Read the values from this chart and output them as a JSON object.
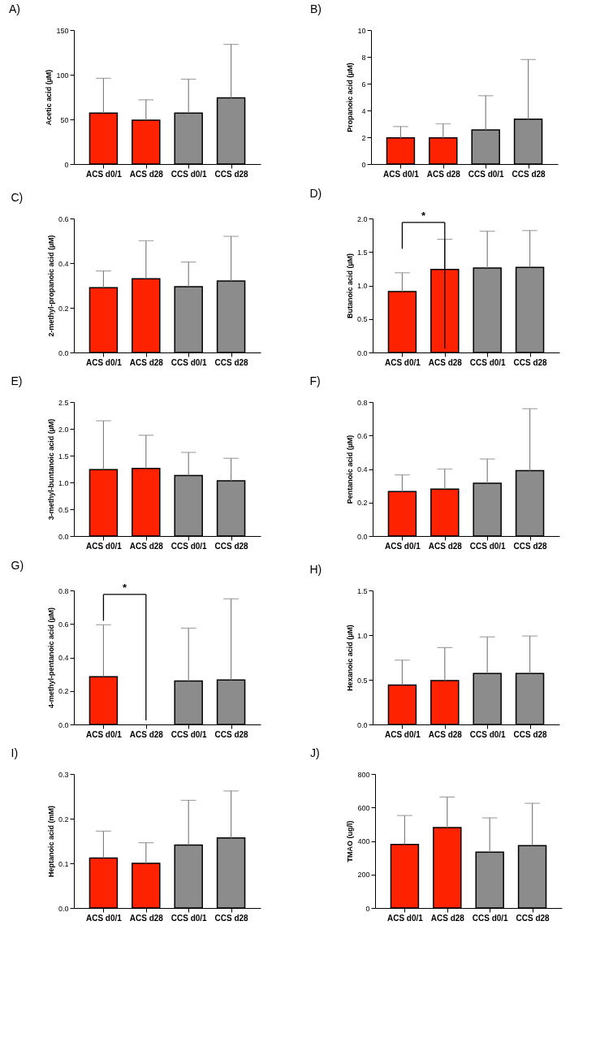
{
  "chart_data": [
    {
      "type": "bar",
      "title": "A)",
      "ylabel": "Acetic acid (µM)",
      "categories": [
        "ACS d0/1",
        "ACS d28",
        "CCS d0/1",
        "CCS d28"
      ],
      "values": [
        57,
        49,
        57,
        74
      ],
      "errors": [
        [
          57,
          96
        ],
        [
          49,
          72
        ],
        [
          57,
          95
        ],
        [
          74,
          134
        ]
      ],
      "colors": [
        "#ff2200",
        "#ff2200",
        "#8c8c8c",
        "#8c8c8c"
      ],
      "ylim": [
        0,
        150
      ],
      "yticks": [
        0,
        50,
        100,
        150
      ]
    },
    {
      "type": "bar",
      "title": "B)",
      "ylabel": "Propanoic acid (µM)",
      "categories": [
        "ACS d0/1",
        "ACS d28",
        "CCS d0/1",
        "CCS d28"
      ],
      "values": [
        1.95,
        1.95,
        2.55,
        3.35
      ],
      "errors": [
        [
          1.95,
          2.8
        ],
        [
          1.95,
          3.0
        ],
        [
          2.55,
          5.1
        ],
        [
          3.35,
          7.8
        ]
      ],
      "colors": [
        "#ff2200",
        "#ff2200",
        "#8c8c8c",
        "#8c8c8c"
      ],
      "ylim": [
        0,
        10
      ],
      "yticks": [
        0,
        2,
        4,
        6,
        8,
        10
      ]
    },
    {
      "type": "bar",
      "title": "C)",
      "ylabel": "2-methyl-propanoic acid (µM)",
      "categories": [
        "ACS d0/1",
        "ACS d28",
        "CCS d0/1",
        "CCS d28"
      ],
      "values": [
        0.29,
        0.33,
        0.295,
        0.32
      ],
      "errors": [
        [
          0.29,
          0.365
        ],
        [
          0.33,
          0.5
        ],
        [
          0.295,
          0.405
        ],
        [
          0.32,
          0.52
        ]
      ],
      "colors": [
        "#ff2200",
        "#ff2200",
        "#8c8c8c",
        "#8c8c8c"
      ],
      "ylim": [
        0,
        0.6
      ],
      "yticks": [
        {
          "value": 0,
          "label": "0.0"
        },
        0.2,
        0.4,
        0.6
      ]
    },
    {
      "type": "bar",
      "title": "D)",
      "ylabel": "Butanoic acid (µM)",
      "categories": [
        "ACS d0/1",
        "ACS d28",
        "CCS d0/1",
        "CCS d28"
      ],
      "values": [
        0.91,
        1.24,
        1.26,
        1.27
      ],
      "errors": [
        [
          0.91,
          1.19
        ],
        [
          1.24,
          1.69
        ],
        [
          1.26,
          1.81
        ],
        [
          1.27,
          1.82
        ]
      ],
      "colors": [
        "#ff2200",
        "#ff2200",
        "#8c8c8c",
        "#8c8c8c"
      ],
      "ylim": [
        0,
        2.0
      ],
      "yticks": [
        {
          "value": 0,
          "label": "0.0"
        },
        0.5,
        {
          "value": 1,
          "label": "1.0"
        },
        1.5,
        {
          "value": 2,
          "label": "2.0"
        }
      ],
      "annotations": [
        "*"
      ]
    },
    {
      "type": "bar",
      "title": "E)",
      "ylabel": "3-methyl-buntanoic acid (µM)",
      "categories": [
        "ACS d0/1",
        "ACS d28",
        "CCS d0/1",
        "CCS d28"
      ],
      "values": [
        1.24,
        1.26,
        1.13,
        1.03
      ],
      "errors": [
        [
          1.24,
          2.15
        ],
        [
          1.26,
          1.88
        ],
        [
          1.13,
          1.56
        ],
        [
          1.03,
          1.45
        ]
      ],
      "colors": [
        "#ff2200",
        "#ff2200",
        "#8c8c8c",
        "#8c8c8c"
      ],
      "ylim": [
        0,
        2.5
      ],
      "yticks": [
        {
          "value": 0,
          "label": "0.0"
        },
        0.5,
        {
          "value": 1,
          "label": "1.0"
        },
        1.5,
        {
          "value": 2,
          "label": "2.0"
        },
        2.5
      ]
    },
    {
      "type": "bar",
      "title": "F)",
      "ylabel": "Pentanoic acid (µM)",
      "categories": [
        "ACS d0/1",
        "ACS d28",
        "CCS d0/1",
        "CCS d28"
      ],
      "values": [
        0.265,
        0.28,
        0.315,
        0.39
      ],
      "errors": [
        [
          0.265,
          0.365
        ],
        [
          0.28,
          0.4
        ],
        [
          0.315,
          0.46
        ],
        [
          0.39,
          0.76
        ]
      ],
      "colors": [
        "#ff2200",
        "#ff2200",
        "#8c8c8c",
        "#8c8c8c"
      ],
      "ylim": [
        0,
        0.8
      ],
      "yticks": [
        {
          "value": 0,
          "label": "0.0"
        },
        0.2,
        0.4,
        0.6,
        0.8
      ]
    },
    {
      "type": "bar",
      "title": "G)",
      "ylabel": "4-methyl-pentanoic acid (µM)",
      "categories": [
        "ACS d0/1",
        "ACS d28",
        "CCS d0/1",
        "CCS d28"
      ],
      "values": [
        0.285,
        0,
        0.26,
        0.265
      ],
      "errors": [
        [
          0.285,
          0.595
        ],
        null,
        [
          0.26,
          0.575
        ],
        [
          0.265,
          0.75
        ]
      ],
      "colors": [
        "#ff2200",
        "#ff2200",
        "#8c8c8c",
        "#8c8c8c"
      ],
      "ylim": [
        0,
        0.8
      ],
      "yticks": [
        {
          "value": 0,
          "label": "0.0"
        },
        0.2,
        0.4,
        0.6,
        0.8
      ],
      "annotations": [
        "*"
      ]
    },
    {
      "type": "bar",
      "title": "H)",
      "ylabel": "Hexanoic acid (µM)",
      "categories": [
        "ACS d0/1",
        "ACS d28",
        "CCS d0/1",
        "CCS d28"
      ],
      "values": [
        0.44,
        0.49,
        0.57,
        0.57
      ],
      "errors": [
        [
          0.44,
          0.72
        ],
        [
          0.49,
          0.86
        ],
        [
          0.57,
          0.98
        ],
        [
          0.57,
          0.99
        ]
      ],
      "colors": [
        "#ff2200",
        "#ff2200",
        "#8c8c8c",
        "#8c8c8c"
      ],
      "ylim": [
        0,
        1.5
      ],
      "yticks": [
        {
          "value": 0,
          "label": "0.0"
        },
        0.5,
        {
          "value": 1,
          "label": "1.0"
        },
        1.5
      ]
    },
    {
      "type": "bar",
      "title": "I)",
      "ylabel": "Heptanoic acid (mM)",
      "categories": [
        "ACS d0/1",
        "ACS d28",
        "CCS d0/1",
        "CCS d28"
      ],
      "values": [
        0.112,
        0.1,
        0.141,
        0.157
      ],
      "errors": [
        [
          0.112,
          0.172
        ],
        [
          0.1,
          0.146
        ],
        [
          0.141,
          0.241
        ],
        [
          0.157,
          0.262
        ]
      ],
      "colors": [
        "#ff2200",
        "#ff2200",
        "#8c8c8c",
        "#8c8c8c"
      ],
      "ylim": [
        0,
        0.3
      ],
      "yticks": [
        {
          "value": 0,
          "label": "0.0"
        },
        0.1,
        0.2,
        0.3
      ]
    },
    {
      "type": "bar",
      "title": "J)",
      "ylabel": "TMAO (ug/l)",
      "categories": [
        "ACS d0/1",
        "ACS d28",
        "CCS d0/1",
        "CCS d28"
      ],
      "values": [
        380,
        480,
        333,
        372
      ],
      "errors": [
        [
          380,
          552
        ],
        [
          480,
          662
        ],
        [
          333,
          538
        ],
        [
          372,
          625
        ]
      ],
      "colors": [
        "#ff2200",
        "#ff2200",
        "#8c8c8c",
        "#8c8c8c"
      ],
      "ylim": [
        0,
        800
      ],
      "yticks": [
        0,
        200,
        400,
        600,
        800
      ]
    }
  ]
}
